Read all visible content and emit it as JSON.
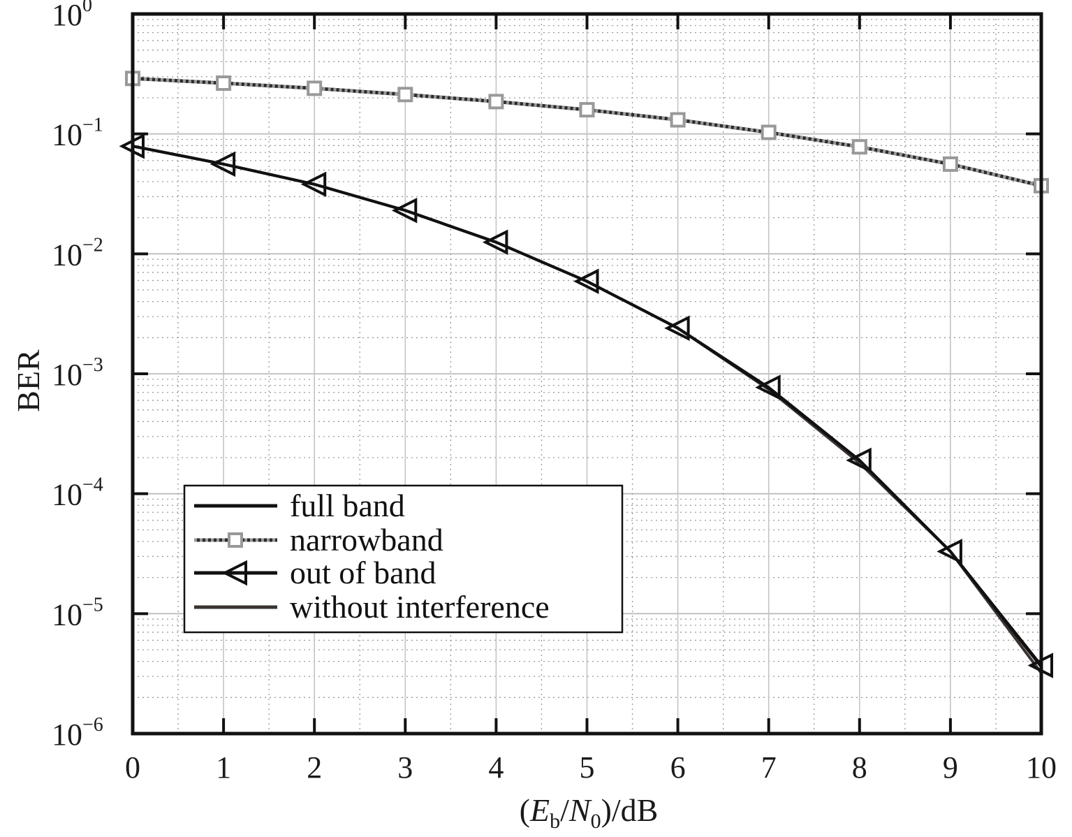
{
  "chart_data": {
    "type": "line",
    "xlabel": {
      "open": "(",
      "E": "E",
      "E_sub": "b",
      "slash": "/",
      "N": "N",
      "N_sub": "0",
      "close": ")/dB"
    },
    "ylabel": "BER",
    "xlim": [
      0,
      10
    ],
    "ylim": [
      1e-06,
      1
    ],
    "yscale": "log",
    "grid": true,
    "legend_position": "lower-left",
    "x_ticks": [
      "0",
      "1",
      "2",
      "3",
      "4",
      "5",
      "6",
      "7",
      "8",
      "9",
      "10"
    ],
    "y_ticks": [
      {
        "base": "10",
        "exp": "−6"
      },
      {
        "base": "10",
        "exp": "−5"
      },
      {
        "base": "10",
        "exp": "−4"
      },
      {
        "base": "10",
        "exp": "−3"
      },
      {
        "base": "10",
        "exp": "−2"
      },
      {
        "base": "10",
        "exp": "−1"
      },
      {
        "base": "10",
        "exp": "0"
      }
    ],
    "x": [
      0,
      1,
      2,
      3,
      4,
      5,
      6,
      7,
      8,
      9,
      10
    ],
    "series": [
      {
        "name": "full band",
        "color": "#111111",
        "line": "solid",
        "marker": "none",
        "values": [
          0.079,
          0.056,
          0.038,
          0.023,
          0.0125,
          0.0059,
          0.0024,
          0.00076,
          0.00019,
          3.3e-05,
          3.6e-06
        ]
      },
      {
        "name": "narrowband",
        "color": "#999999",
        "line": "dotted",
        "marker": "square",
        "values": [
          0.29,
          0.265,
          0.24,
          0.213,
          0.186,
          0.159,
          0.131,
          0.103,
          0.078,
          0.056,
          0.037
        ]
      },
      {
        "name": "out of band",
        "color": "#111111",
        "line": "solid",
        "marker": "triangle-left",
        "values": [
          0.079,
          0.056,
          0.038,
          0.023,
          0.0125,
          0.0059,
          0.0024,
          0.00077,
          0.00019,
          3.3e-05,
          3.7e-06
        ]
      },
      {
        "name": "without interference",
        "color": "#3a3330",
        "line": "solid",
        "marker": "none",
        "values": [
          0.079,
          0.056,
          0.038,
          0.023,
          0.0125,
          0.0059,
          0.0024,
          0.00074,
          0.00018,
          3.3e-05,
          3.2e-06
        ]
      }
    ]
  }
}
